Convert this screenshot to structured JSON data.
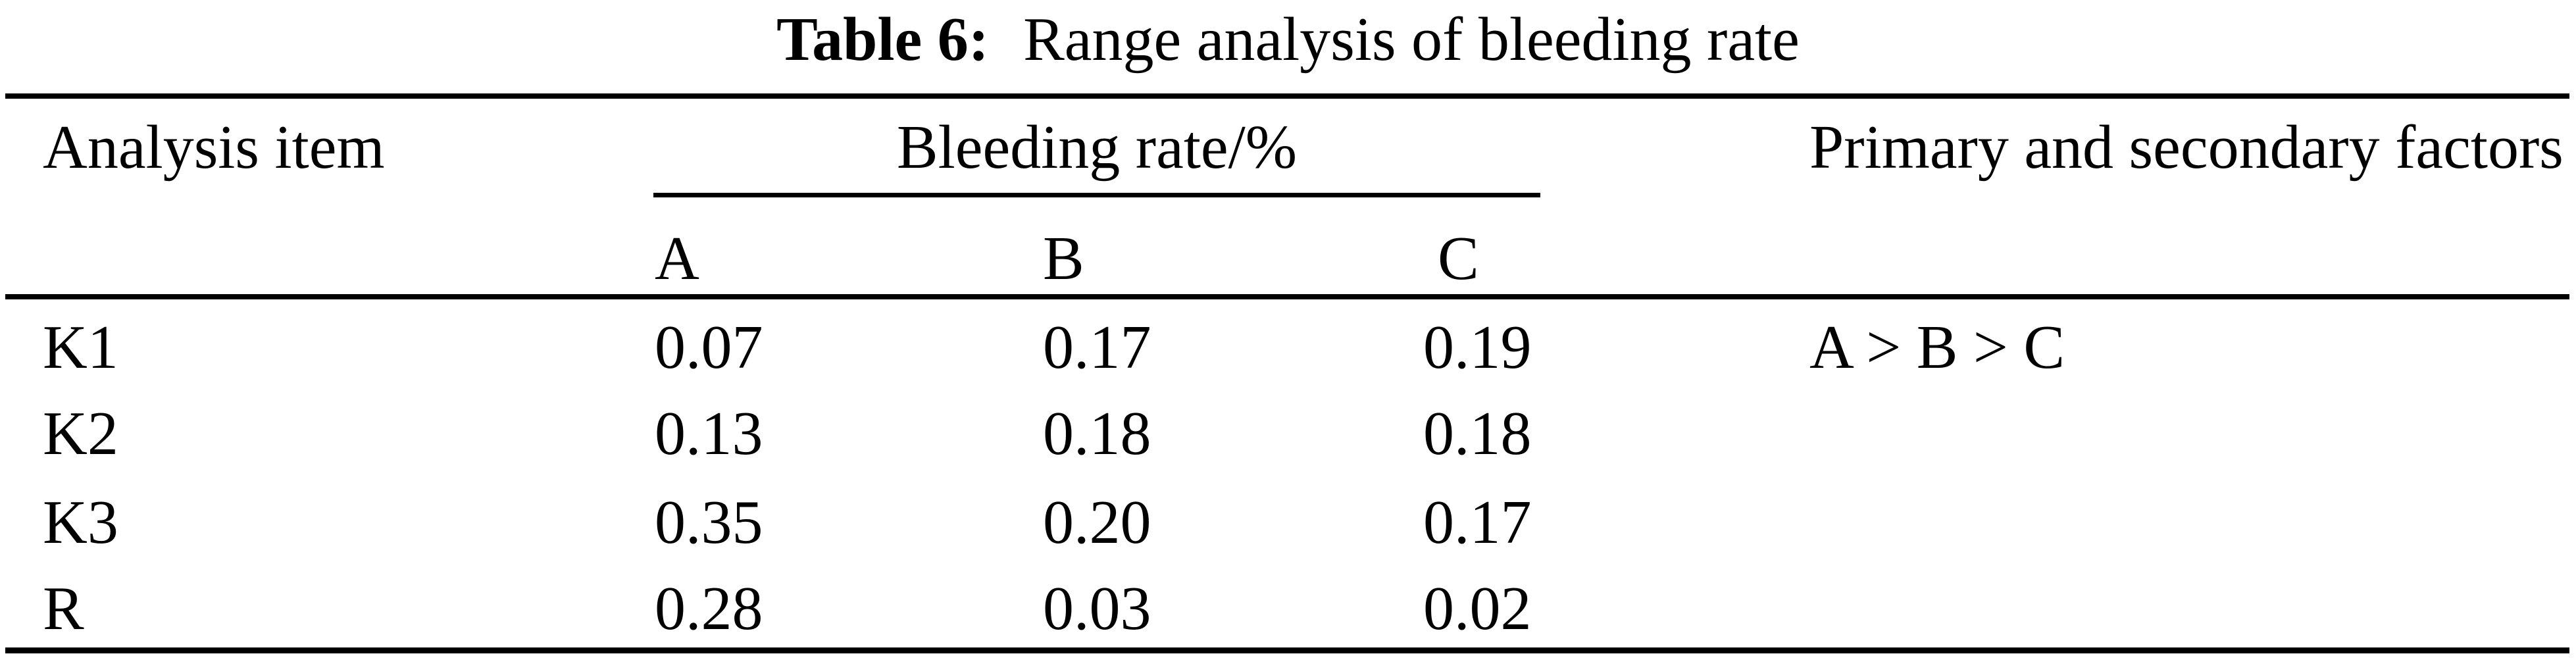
{
  "caption": {
    "label": "Table 6:",
    "title": "Range analysis of bleeding rate"
  },
  "table": {
    "row_header_column": "Analysis item",
    "group_header": "Bleeding rate/%",
    "group_columns": [
      "A",
      "B",
      "C"
    ],
    "factors_header": "Primary and secondary factors",
    "rows": [
      {
        "item": "K1",
        "A": "0.07",
        "B": "0.17",
        "C": "0.19",
        "factors": "A > B > C"
      },
      {
        "item": "K2",
        "A": "0.13",
        "B": "0.18",
        "C": "0.18",
        "factors": ""
      },
      {
        "item": "K3",
        "A": "0.35",
        "B": "0.20",
        "C": "0.17",
        "factors": ""
      },
      {
        "item": "R",
        "A": "0.28",
        "B": "0.03",
        "C": "0.02",
        "factors": ""
      }
    ]
  }
}
